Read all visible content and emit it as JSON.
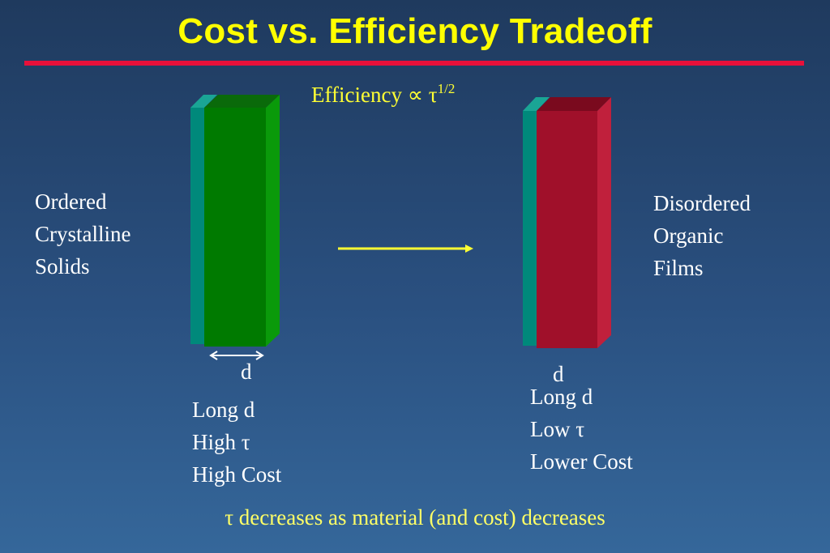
{
  "title": "Cost vs. Efficiency Tradeoff",
  "efficiency": {
    "prefix": "Efficiency ∝ τ",
    "exponent": "1/2"
  },
  "left": {
    "label_lines": [
      "Ordered",
      "Crystalline",
      "Solids"
    ],
    "dimension": "d",
    "properties": [
      "Long d",
      "High τ",
      "High Cost"
    ]
  },
  "right": {
    "label_lines": [
      "Disordered",
      "Organic",
      "Films"
    ],
    "dimension": "d",
    "properties": [
      "Long d",
      "Low τ",
      "Lower Cost"
    ]
  },
  "footer": "τ decreases as material (and cost) decreases",
  "colors": {
    "title": "#ffff00",
    "rule": "#e8103a",
    "teal": "#00897b",
    "green": "#007a00",
    "crimson": "#a0102a",
    "arrow": "#ffff33"
  }
}
